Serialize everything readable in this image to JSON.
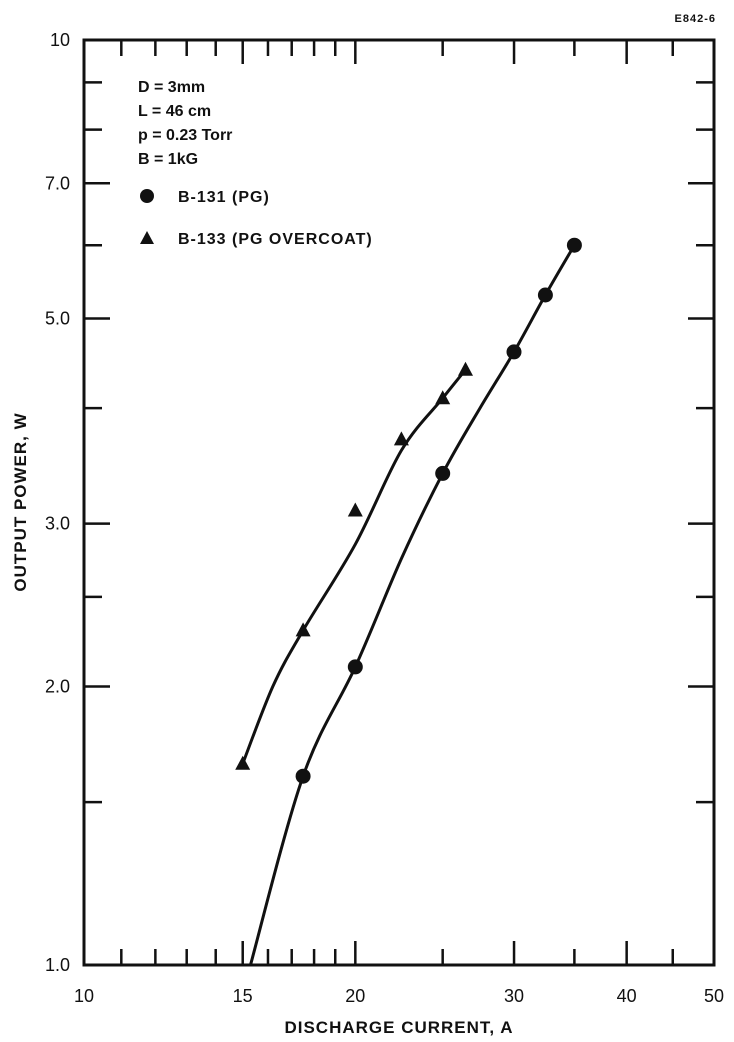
{
  "figure_id": "E842-6",
  "chart_data": {
    "type": "line",
    "xlabel": "DISCHARGE CURRENT, A",
    "ylabel": "OUTPUT POWER, W",
    "xscale": "log",
    "yscale": "log",
    "xlim": [
      10,
      50
    ],
    "ylim": [
      1.0,
      10
    ],
    "x_tick_labels": [
      "10",
      "15",
      "20",
      "30",
      "40",
      "50"
    ],
    "y_tick_labels": [
      "1.0",
      "2.0",
      "3.0",
      "5.0",
      "7.0",
      "10"
    ],
    "annotations": [
      "D = 3mm",
      "L = 46 cm",
      "p = 0.23 Torr",
      "B = 1kG"
    ],
    "legend_position": "top-left",
    "series": [
      {
        "name": "B-131 (PG)",
        "marker": "circle",
        "points": [
          {
            "x": 17.5,
            "y": 1.6
          },
          {
            "x": 20,
            "y": 2.1
          },
          {
            "x": 25,
            "y": 3.4
          },
          {
            "x": 30,
            "y": 4.6
          },
          {
            "x": 32.5,
            "y": 5.3
          },
          {
            "x": 35,
            "y": 6.0
          }
        ],
        "curve": [
          [
            15.3,
            1.0
          ],
          [
            17.5,
            1.6
          ],
          [
            20,
            2.1
          ],
          [
            22.5,
            2.75
          ],
          [
            25,
            3.4
          ],
          [
            27.5,
            4.0
          ],
          [
            30,
            4.6
          ],
          [
            32.5,
            5.3
          ],
          [
            35,
            6.0
          ]
        ]
      },
      {
        "name": "B-133 (PG OVERCOAT)",
        "marker": "triangle",
        "points": [
          {
            "x": 15,
            "y": 1.65
          },
          {
            "x": 17.5,
            "y": 2.3
          },
          {
            "x": 20,
            "y": 3.1
          },
          {
            "x": 22.5,
            "y": 3.7
          },
          {
            "x": 25,
            "y": 4.1
          },
          {
            "x": 26.5,
            "y": 4.4
          }
        ],
        "curve": [
          [
            15,
            1.65
          ],
          [
            16.2,
            2.0
          ],
          [
            17.5,
            2.3
          ],
          [
            20,
            2.85
          ],
          [
            22.5,
            3.6
          ],
          [
            25,
            4.1
          ],
          [
            26.5,
            4.4
          ]
        ]
      }
    ]
  }
}
